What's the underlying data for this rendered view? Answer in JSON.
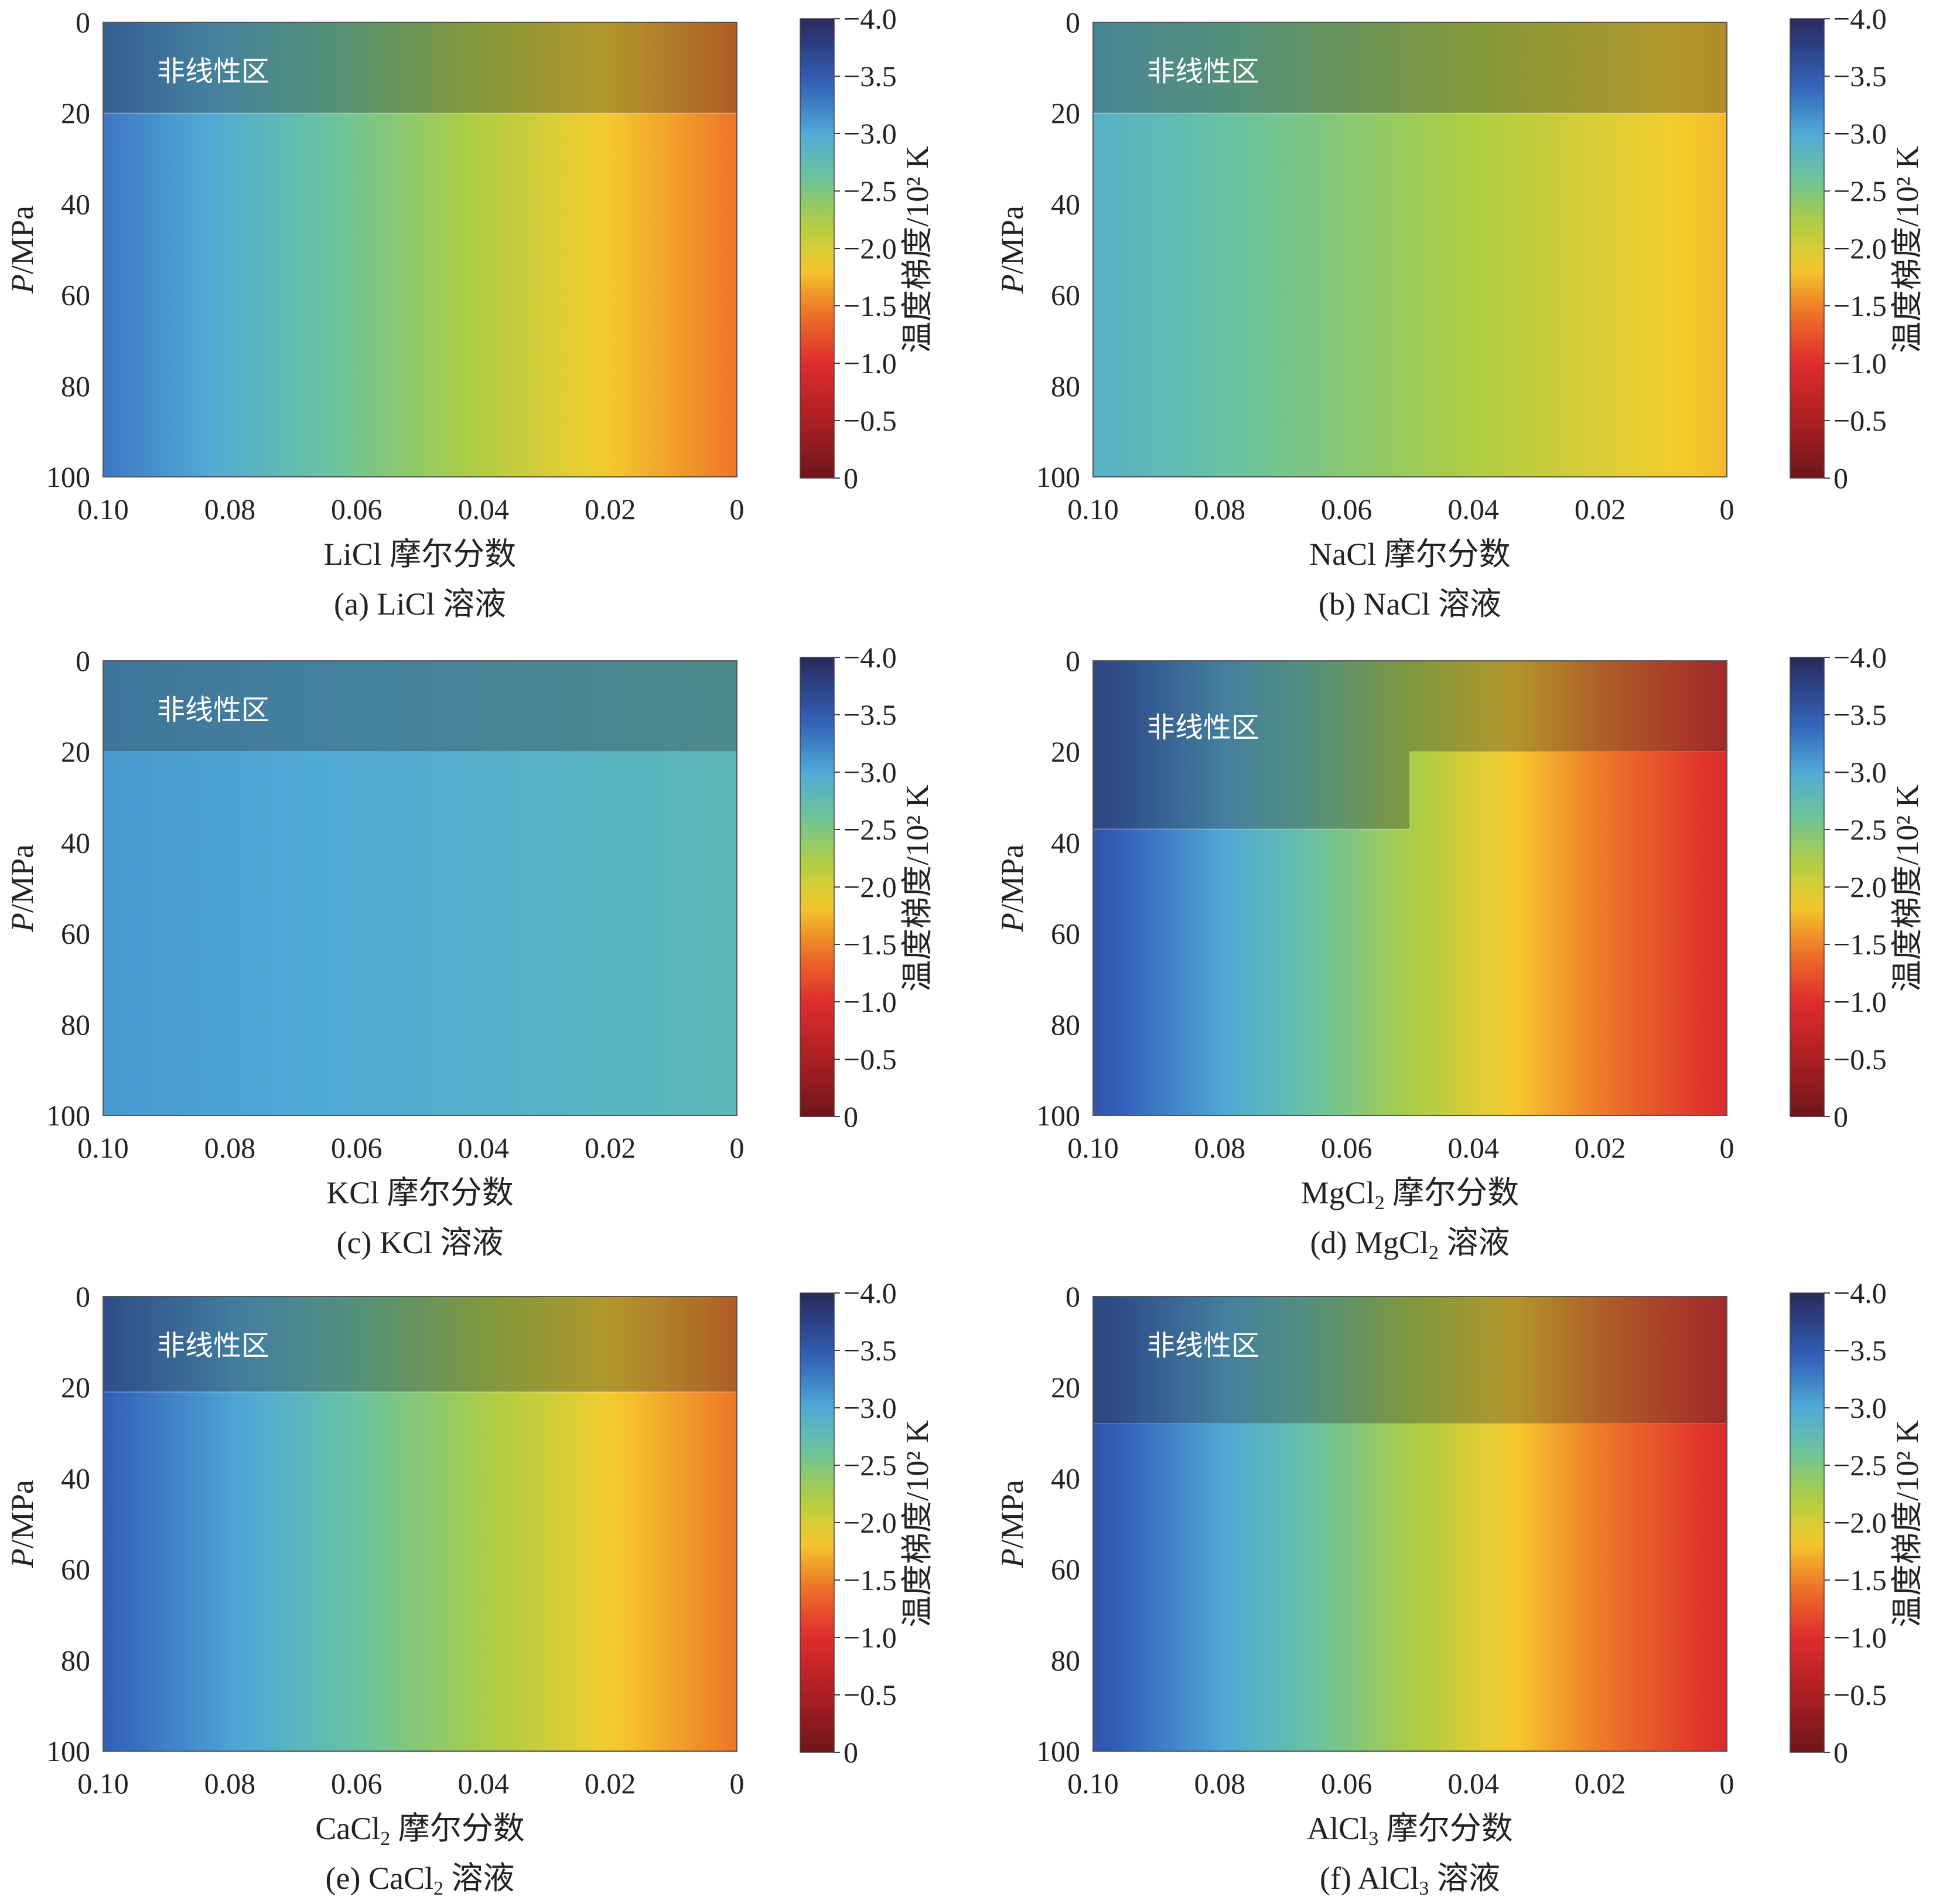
{
  "figure": {
    "nonlinear_label": "非线性区",
    "colorbar_title": "温度梯度/10² K",
    "y_axis_title": "P/MPa",
    "y_ticks": [
      "0",
      "20",
      "40",
      "60",
      "80",
      "100"
    ],
    "x_ticks": [
      "0.10",
      "0.08",
      "0.06",
      "0.04",
      "0.02",
      "0"
    ]
  },
  "chart_data": [
    {
      "type": "heatmap",
      "panel": "a",
      "caption": {
        "prefix": "(a) ",
        "formula": "LiCl",
        "subscript": "",
        "suffix": " 溶液"
      },
      "xlabel": {
        "formula": "LiCl",
        "subscript": "",
        "suffix": " 摩尔分数"
      },
      "ylabel": "P/MPa",
      "x_range": [
        0.1,
        0
      ],
      "y_range": [
        0,
        100
      ],
      "y_inverted": true,
      "colorbar": {
        "label": "温度梯度/10² K",
        "range": [
          0,
          -4.0
        ],
        "ticks": [
          "−4.0",
          "−3.5",
          "−3.0",
          "−2.5",
          "−2.0",
          "−1.5",
          "−1.0",
          "−0.5",
          "0"
        ]
      },
      "nonlinear_region_max_pressure": 20,
      "approx_gradient_at_0MPa": {
        "x": [
          0.1,
          0
        ],
        "values": [
          -3.2,
          -1.4
        ]
      },
      "approx_gradient_at_100MPa": {
        "x": [
          0.1,
          0
        ],
        "values": [
          -3.4,
          -1.5
        ]
      }
    },
    {
      "type": "heatmap",
      "panel": "b",
      "caption": {
        "prefix": "(b) ",
        "formula": "NaCl",
        "subscript": "",
        "suffix": " 溶液"
      },
      "xlabel": {
        "formula": "NaCl",
        "subscript": "",
        "suffix": " 摩尔分数"
      },
      "ylabel": "P/MPa",
      "x_range": [
        0.1,
        0
      ],
      "y_range": [
        0,
        100
      ],
      "y_inverted": true,
      "colorbar": {
        "label": "温度梯度/10² K",
        "range": [
          0,
          -4.0
        ],
        "ticks": [
          "−4.0",
          "−3.5",
          "−3.0",
          "−2.5",
          "−2.0",
          "−1.5",
          "−1.0",
          "−0.5",
          "0"
        ]
      },
      "nonlinear_region_max_pressure": 20,
      "approx_gradient_at_0MPa": {
        "x": [
          0.1,
          0
        ],
        "values": [
          -2.8,
          -1.7
        ]
      },
      "approx_gradient_at_100MPa": {
        "x": [
          0.1,
          0
        ],
        "values": [
          -3.0,
          -1.8
        ]
      }
    },
    {
      "type": "heatmap",
      "panel": "c",
      "caption": {
        "prefix": "(c) ",
        "formula": "KCl",
        "subscript": "",
        "suffix": " 溶液"
      },
      "xlabel": {
        "formula": "KCl",
        "subscript": "",
        "suffix": " 摩尔分数"
      },
      "ylabel": "P/MPa",
      "x_range": [
        0.1,
        0
      ],
      "y_range": [
        0,
        100
      ],
      "y_inverted": true,
      "colorbar": {
        "label": "温度梯度/10² K",
        "range": [
          0,
          -4.0
        ],
        "ticks": [
          "−4.0",
          "−3.5",
          "−3.0",
          "−2.5",
          "−2.0",
          "−1.5",
          "−1.0",
          "−0.5",
          "0"
        ]
      },
      "nonlinear_region_max_pressure": 20,
      "approx_gradient_at_0MPa": {
        "x": [
          0.1,
          0
        ],
        "values": [
          -3.1,
          -2.7
        ]
      },
      "approx_gradient_at_100MPa": {
        "x": [
          0.1,
          0
        ],
        "values": [
          -3.1,
          -2.9
        ]
      }
    },
    {
      "type": "heatmap",
      "panel": "d",
      "caption": {
        "prefix": "(d) ",
        "formula": "MgCl",
        "subscript": "2",
        "suffix": " 溶液"
      },
      "xlabel": {
        "formula": "MgCl",
        "subscript": "2",
        "suffix": " 摩尔分数"
      },
      "ylabel": "P/MPa",
      "x_range": [
        0.1,
        0
      ],
      "y_range": [
        0,
        100
      ],
      "y_inverted": true,
      "colorbar": {
        "label": "温度梯度/10² K",
        "range": [
          0,
          -4.0
        ],
        "ticks": [
          "−4.0",
          "−3.5",
          "−3.0",
          "−2.5",
          "−2.0",
          "−1.5",
          "−1.0",
          "−0.5",
          "0"
        ]
      },
      "nonlinear_region_max_pressure": 20,
      "nonlinear_region_step": {
        "x_from": 0.1,
        "x_to": 0.05,
        "max_pressure": 37
      },
      "approx_gradient_at_0MPa": {
        "x": [
          0.1,
          0
        ],
        "values": [
          -3.5,
          -0.9
        ]
      },
      "approx_gradient_at_100MPa": {
        "x": [
          0.1,
          0
        ],
        "values": [
          -3.6,
          -1.0
        ]
      }
    },
    {
      "type": "heatmap",
      "panel": "e",
      "caption": {
        "prefix": "(e) ",
        "formula": "CaCl",
        "subscript": "2",
        "suffix": " 溶液"
      },
      "xlabel": {
        "formula": "CaCl",
        "subscript": "2",
        "suffix": " 摩尔分数"
      },
      "ylabel": "P/MPa",
      "x_range": [
        0.1,
        0
      ],
      "y_range": [
        0,
        100
      ],
      "y_inverted": true,
      "colorbar": {
        "label": "温度梯度/10² K",
        "range": [
          0,
          -4.0
        ],
        "ticks": [
          "−4.0",
          "−3.5",
          "−3.0",
          "−2.5",
          "−2.0",
          "−1.5",
          "−1.0",
          "−0.5",
          "0"
        ]
      },
      "nonlinear_region_max_pressure": 21,
      "approx_gradient_at_0MPa": {
        "x": [
          0.1,
          0
        ],
        "values": [
          -3.4,
          -1.4
        ]
      },
      "approx_gradient_at_100MPa": {
        "x": [
          0.1,
          0
        ],
        "values": [
          -3.5,
          -1.5
        ]
      }
    },
    {
      "type": "heatmap",
      "panel": "f",
      "caption": {
        "prefix": "(f) ",
        "formula": "AlCl",
        "subscript": "3",
        "suffix": " 溶液"
      },
      "xlabel": {
        "formula": "AlCl",
        "subscript": "3",
        "suffix": " 摩尔分数"
      },
      "ylabel": "P/MPa",
      "x_range": [
        0.1,
        0
      ],
      "y_range": [
        0,
        100
      ],
      "y_inverted": true,
      "colorbar": {
        "label": "温度梯度/10² K",
        "range": [
          0,
          -4.0
        ],
        "ticks": [
          "−4.0",
          "−3.5",
          "−3.0",
          "−2.5",
          "−2.0",
          "−1.5",
          "−1.0",
          "−0.5",
          "0"
        ]
      },
      "nonlinear_region_max_pressure": 28,
      "approx_gradient_at_0MPa": {
        "x": [
          0.1,
          0
        ],
        "values": [
          -3.5,
          -0.9
        ]
      },
      "approx_gradient_at_100MPa": {
        "x": [
          0.1,
          0
        ],
        "values": [
          -3.6,
          -1.0
        ]
      }
    }
  ]
}
